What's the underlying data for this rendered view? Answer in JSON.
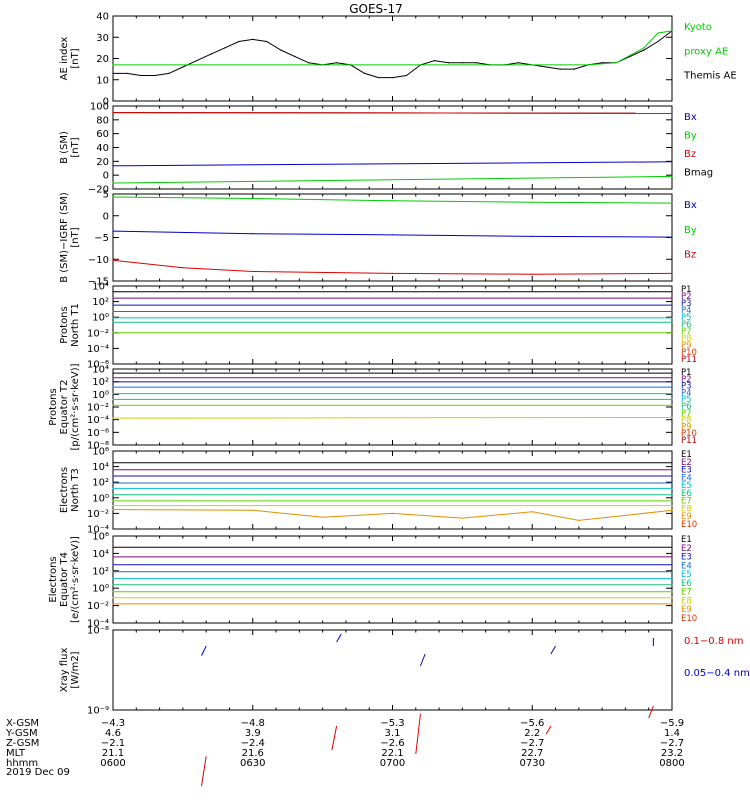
{
  "title": "GOES-17",
  "date": "2019 Dec 09",
  "colors": {
    "black": "#000000",
    "red": "#dd0000",
    "green": "#00cc00",
    "blue": "#0000cc",
    "p": [
      "#000000",
      "#7a0a7a",
      "#1010b0",
      "#1a6ad0",
      "#00c0d0",
      "#10c080",
      "#60d000",
      "#d0d000",
      "#e09000",
      "#e03000",
      "#b00000"
    ]
  },
  "panels": [
    {
      "ylabel": [
        "AE index",
        "[nT]"
      ],
      "ticks": [
        "40",
        "30",
        "20",
        "10",
        "0"
      ],
      "legend": [
        {
          "text": "Kyoto",
          "color": "#00cc00"
        },
        {
          "text": "proxy AE",
          "color": "#00cc00"
        },
        {
          "text": "Themis AE",
          "color": "#000000"
        }
      ]
    },
    {
      "ylabel": [
        "B (SM)",
        "[nT]"
      ],
      "ticks": [
        "100",
        "80",
        "60",
        "40",
        "20",
        "0",
        "−20"
      ],
      "legend": [
        {
          "text": "Bx",
          "color": "#0000cc"
        },
        {
          "text": "By",
          "color": "#00cc00"
        },
        {
          "text": "Bz",
          "color": "#dd0000"
        },
        {
          "text": "Bmag",
          "color": "#000000"
        }
      ]
    },
    {
      "ylabel": [
        "B (SM)−IGRF (SM)",
        "[nT]"
      ],
      "ticks": [
        "5",
        "0",
        "−5",
        "−10",
        "−15"
      ],
      "legend": [
        {
          "text": "Bx",
          "color": "#0000cc"
        },
        {
          "text": "By",
          "color": "#00cc00"
        },
        {
          "text": "Bz",
          "color": "#dd0000"
        }
      ]
    },
    {
      "ylabel": [
        "Protons",
        "North T1"
      ],
      "ticks": [
        "10⁴",
        "10²",
        "10⁰",
        "10⁻²",
        "10⁻⁴",
        "10⁻⁶"
      ],
      "legend": [
        "P1",
        "P2",
        "P3",
        "P4",
        "P5",
        "P6",
        "P7",
        "P8",
        "P9",
        "P10",
        "P11"
      ]
    },
    {
      "ylabel": [
        "Protons",
        "Equator T2",
        "[p/(cm²·s·sr·keV)]"
      ],
      "ticks": [
        "10⁴",
        "10²",
        "10⁰",
        "10⁻²",
        "10⁻⁴",
        "10⁻⁶",
        "10⁻⁸"
      ],
      "legend": [
        "P1",
        "P2",
        "P3",
        "P4",
        "P5",
        "P6",
        "P7",
        "P8",
        "P9",
        "P10",
        "P11"
      ]
    },
    {
      "ylabel": [
        "Electrons",
        "North T3"
      ],
      "ticks": [
        "10⁶",
        "10⁴",
        "10²",
        "10⁰",
        "10⁻²",
        "10⁻⁴"
      ],
      "legend": [
        "E1",
        "E2",
        "E3",
        "E4",
        "E5",
        "E6",
        "E7",
        "E8",
        "E9",
        "E10"
      ]
    },
    {
      "ylabel": [
        "Electrons",
        "Equator T4",
        "[e/(cm²·s·sr·keV)]"
      ],
      "ticks": [
        "10⁶",
        "10⁴",
        "10²",
        "10⁰",
        "10⁻²",
        "10⁻⁴"
      ],
      "legend": [
        "E1",
        "E2",
        "E3",
        "E4",
        "E5",
        "E6",
        "E7",
        "E8",
        "E9",
        "E10"
      ]
    },
    {
      "ylabel": [
        "Xray flux",
        "[W/m2]"
      ],
      "ticks": [
        "10⁻⁸",
        "10⁻⁹"
      ],
      "legend": [
        {
          "text": "0.1−0.8 nm",
          "color": "#dd0000"
        },
        {
          "text": "0.05−0.4 nm",
          "color": "#0000cc"
        }
      ]
    }
  ],
  "footer": {
    "labels": [
      "X-GSM",
      "Y-GSM",
      "Z-GSM",
      "MLT",
      "hhmm"
    ],
    "columns": [
      [
        "−4.3",
        "4.6",
        "−2.1",
        "21.1",
        "0600"
      ],
      [
        "−4.8",
        "3.9",
        "−2.4",
        "21.6",
        "0630"
      ],
      [
        "−5.3",
        "3.1",
        "−2.6",
        "22.1",
        "0700"
      ],
      [
        "−5.6",
        "2.2",
        "−2.7",
        "22.7",
        "0730"
      ],
      [
        "−5.9",
        "1.4",
        "−2.7",
        "23.2",
        "0800"
      ]
    ]
  },
  "chart_data": {
    "type": "line",
    "title": "GOES-17",
    "x": [
      "0600",
      "0630",
      "0700",
      "0730",
      "0800"
    ],
    "xlabel": "hhmm",
    "subplots": [
      {
        "ylabel": "AE index [nT]",
        "ylim": [
          0,
          40
        ],
        "series": [
          {
            "name": "Themis AE",
            "times": [
              0,
              3,
              6,
              9,
              12,
              15,
              18,
              21,
              24,
              27,
              30,
              33,
              36,
              39,
              42,
              45,
              48,
              51,
              54,
              57,
              60,
              63,
              66,
              69,
              72,
              75,
              78,
              81,
              84,
              87,
              90,
              93,
              96,
              99,
              102,
              105,
              108,
              111,
              114,
              117,
              120
            ],
            "values": [
              13,
              13,
              12,
              12,
              13,
              16,
              19,
              22,
              25,
              28,
              29,
              28,
              24,
              21,
              18,
              17,
              18,
              17,
              13,
              11,
              11,
              12,
              17,
              19,
              18,
              18,
              18,
              17,
              17,
              18,
              17,
              16,
              15,
              15,
              17,
              18,
              18,
              21,
              24,
              28,
              33
            ]
          },
          {
            "name": "Kyoto proxy AE",
            "times": [
              0,
              102,
              108,
              114,
              117,
              120
            ],
            "values": [
              17,
              17,
              18,
              25,
              32,
              33
            ]
          }
        ]
      },
      {
        "ylabel": "B (SM) [nT]",
        "ylim": [
          -25,
          100
        ],
        "series": [
          {
            "name": "Bmag",
            "times": [
              0,
              120
            ],
            "values": [
              90,
              89
            ]
          },
          {
            "name": "Bz",
            "times": [
              0,
              120
            ],
            "values": [
              90,
              89
            ]
          },
          {
            "name": "Bx",
            "times": [
              0,
              120
            ],
            "values": [
              10,
              16
            ]
          },
          {
            "name": "By",
            "times": [
              0,
              120
            ],
            "values": [
              -16,
              -6
            ]
          }
        ]
      },
      {
        "ylabel": "B (SM)−IGRF (SM) [nT]",
        "ylim": [
          -17,
          6
        ],
        "series": [
          {
            "name": "By",
            "times": [
              0,
              30,
              60,
              90,
              120
            ],
            "values": [
              5.2,
              4.8,
              4.2,
              3.8,
              3.6
            ]
          },
          {
            "name": "Bx",
            "times": [
              0,
              30,
              60,
              90,
              120
            ],
            "values": [
              -3.8,
              -4.5,
              -4.8,
              -5.2,
              -5.4
            ]
          },
          {
            "name": "Bz",
            "times": [
              0,
              15,
              30,
              60,
              90,
              120
            ],
            "values": [
              -11.5,
              -13.5,
              -14.5,
              -15.0,
              -15.2,
              -15.0
            ]
          }
        ]
      },
      {
        "ylabel": "Protons North T1 (log10 flux)",
        "ylim": [
          -7,
          4
        ],
        "series": [
          {
            "name": "P1",
            "times": [
              0,
              120
            ],
            "values": [
              3.2,
              3.2
            ]
          },
          {
            "name": "P2",
            "times": [
              0,
              120
            ],
            "values": [
              2.3,
              2.3
            ]
          },
          {
            "name": "P3",
            "times": [
              0,
              120
            ],
            "values": [
              1.3,
              1.3
            ]
          },
          {
            "name": "P4",
            "times": [
              0,
              120
            ],
            "values": [
              0.4,
              0.4
            ]
          },
          {
            "name": "P5",
            "times": [
              0,
              120
            ],
            "values": [
              -0.5,
              -0.5
            ]
          },
          {
            "name": "P6",
            "times": [
              0,
              120
            ],
            "values": [
              -1.1,
              -1.1
            ]
          },
          {
            "name": "P7",
            "times": [
              0,
              120
            ],
            "values": [
              -2.6,
              -2.6
            ]
          }
        ]
      },
      {
        "ylabel": "Protons Equator T2 [p/(cm²·s·sr·keV)]",
        "ylim": [
          -9,
          4
        ],
        "series": [
          {
            "name": "P1",
            "times": [
              0,
              120
            ],
            "values": [
              3.3,
              3.3
            ]
          },
          {
            "name": "P2",
            "times": [
              0,
              120
            ],
            "values": [
              2.5,
              2.5
            ]
          },
          {
            "name": "P3",
            "times": [
              0,
              120
            ],
            "values": [
              1.8,
              1.8
            ]
          },
          {
            "name": "P4",
            "times": [
              0,
              120
            ],
            "values": [
              0.9,
              0.9
            ]
          },
          {
            "name": "P5",
            "times": [
              0,
              120
            ],
            "values": [
              -0.2,
              -0.2
            ]
          },
          {
            "name": "P6",
            "times": [
              0,
              120
            ],
            "values": [
              -1.2,
              -1.2
            ]
          },
          {
            "name": "P7",
            "times": [
              0,
              120
            ],
            "values": [
              -2.2,
              -2.2
            ]
          },
          {
            "name": "P8",
            "times": [
              0,
              120
            ],
            "values": [
              -4.4,
              -4.3
            ]
          }
        ]
      },
      {
        "ylabel": "Electrons North T3 (log10 flux)",
        "ylim": [
          -4,
          6
        ],
        "series": [
          {
            "name": "E1",
            "times": [
              0,
              120
            ],
            "values": [
              4.5,
              4.5
            ]
          },
          {
            "name": "E2",
            "times": [
              0,
              120
            ],
            "values": [
              3.6,
              3.6
            ]
          },
          {
            "name": "E3",
            "times": [
              0,
              120
            ],
            "values": [
              2.8,
              2.8
            ]
          },
          {
            "name": "E4",
            "times": [
              0,
              120
            ],
            "values": [
              1.9,
              1.9
            ]
          },
          {
            "name": "E5",
            "times": [
              0,
              120
            ],
            "values": [
              1.2,
              1.2
            ]
          },
          {
            "name": "E6",
            "times": [
              0,
              120
            ],
            "values": [
              0.4,
              0.4
            ]
          },
          {
            "name": "E7",
            "times": [
              0,
              120
            ],
            "values": [
              -0.4,
              -0.4
            ]
          },
          {
            "name": "E8",
            "times": [
              0,
              120
            ],
            "values": [
              -1.0,
              -1.0
            ]
          },
          {
            "name": "E9",
            "times": [
              0,
              30,
              45,
              60,
              75,
              90,
              100,
              120
            ],
            "values": [
              -1.5,
              -1.6,
              -2.5,
              -2.0,
              -2.6,
              -1.8,
              -2.9,
              -1.6
            ]
          }
        ]
      },
      {
        "ylabel": "Electrons Equator T4 [e/(cm²·s·sr·keV)]",
        "ylim": [
          -4,
          6
        ],
        "series": [
          {
            "name": "E1",
            "times": [
              0,
              120
            ],
            "values": [
              4.7,
              4.7
            ]
          },
          {
            "name": "E2",
            "times": [
              0,
              120
            ],
            "values": [
              3.6,
              3.6
            ]
          },
          {
            "name": "E3",
            "times": [
              0,
              120
            ],
            "values": [
              2.7,
              2.7
            ]
          },
          {
            "name": "E4",
            "times": [
              0,
              120
            ],
            "values": [
              1.9,
              1.9
            ]
          },
          {
            "name": "E5",
            "times": [
              0,
              120
            ],
            "values": [
              1.1,
              1.1
            ]
          },
          {
            "name": "E6",
            "times": [
              0,
              120
            ],
            "values": [
              0.4,
              0.4
            ]
          },
          {
            "name": "E7",
            "times": [
              0,
              120
            ],
            "values": [
              -0.4,
              -0.4
            ]
          },
          {
            "name": "E8",
            "times": [
              0,
              120
            ],
            "values": [
              -1.1,
              -1.1
            ]
          },
          {
            "name": "E9",
            "times": [
              0,
              120
            ],
            "values": [
              -1.8,
              -1.8
            ]
          }
        ]
      },
      {
        "ylabel": "Xray flux [W/m2]",
        "ylim": [
          -9,
          -8
        ],
        "series": [
          {
            "name": "0.1−0.8 nm",
            "segments": [
              [
                19,
                -9.95,
                20,
                -9.58
              ],
              [
                47,
                -9.5,
                48,
                -9.2
              ],
              [
                65,
                -9.55,
                66,
                -9.05
              ],
              [
                93,
                -9.3,
                94,
                -9.2
              ],
              [
                115,
                -9.1,
                116,
                -8.95
              ]
            ]
          },
          {
            "name": "0.05−0.4 nm",
            "segments": [
              [
                19,
                -8.32,
                20,
                -8.2
              ],
              [
                48,
                -8.15,
                49,
                -8.05
              ],
              [
                66,
                -8.45,
                67,
                -8.3
              ],
              [
                94,
                -8.3,
                95,
                -8.2
              ],
              [
                116,
                -8.2,
                116,
                -8.1
              ]
            ]
          }
        ]
      }
    ]
  }
}
